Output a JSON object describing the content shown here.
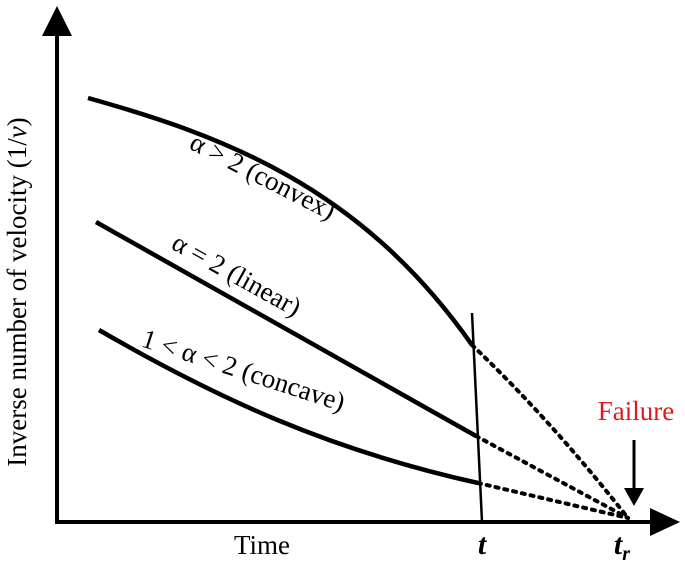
{
  "chart_data": {
    "type": "line",
    "title": "",
    "xlabel": "Time",
    "ylabel": {
      "text": "Inverse number of velocity (1/",
      "var": "v",
      "close": ")"
    },
    "x_ticks": [
      {
        "label": "t",
        "sub": ""
      },
      {
        "label": "t",
        "sub": "r"
      }
    ],
    "annotation": {
      "text": "Failure",
      "color": "#e0191f"
    },
    "grid": false,
    "legend": "none",
    "line_color": "#000000",
    "series": [
      {
        "label": "α > 2 (convex)",
        "style": "solid-then-dotted",
        "curvature": "convex"
      },
      {
        "label": "α = 2 (linear)",
        "style": "solid-then-dotted",
        "curvature": "linear"
      },
      {
        "label": "1 < α < 2 (concave)",
        "style": "solid-then-dotted",
        "curvature": "concave"
      }
    ]
  }
}
